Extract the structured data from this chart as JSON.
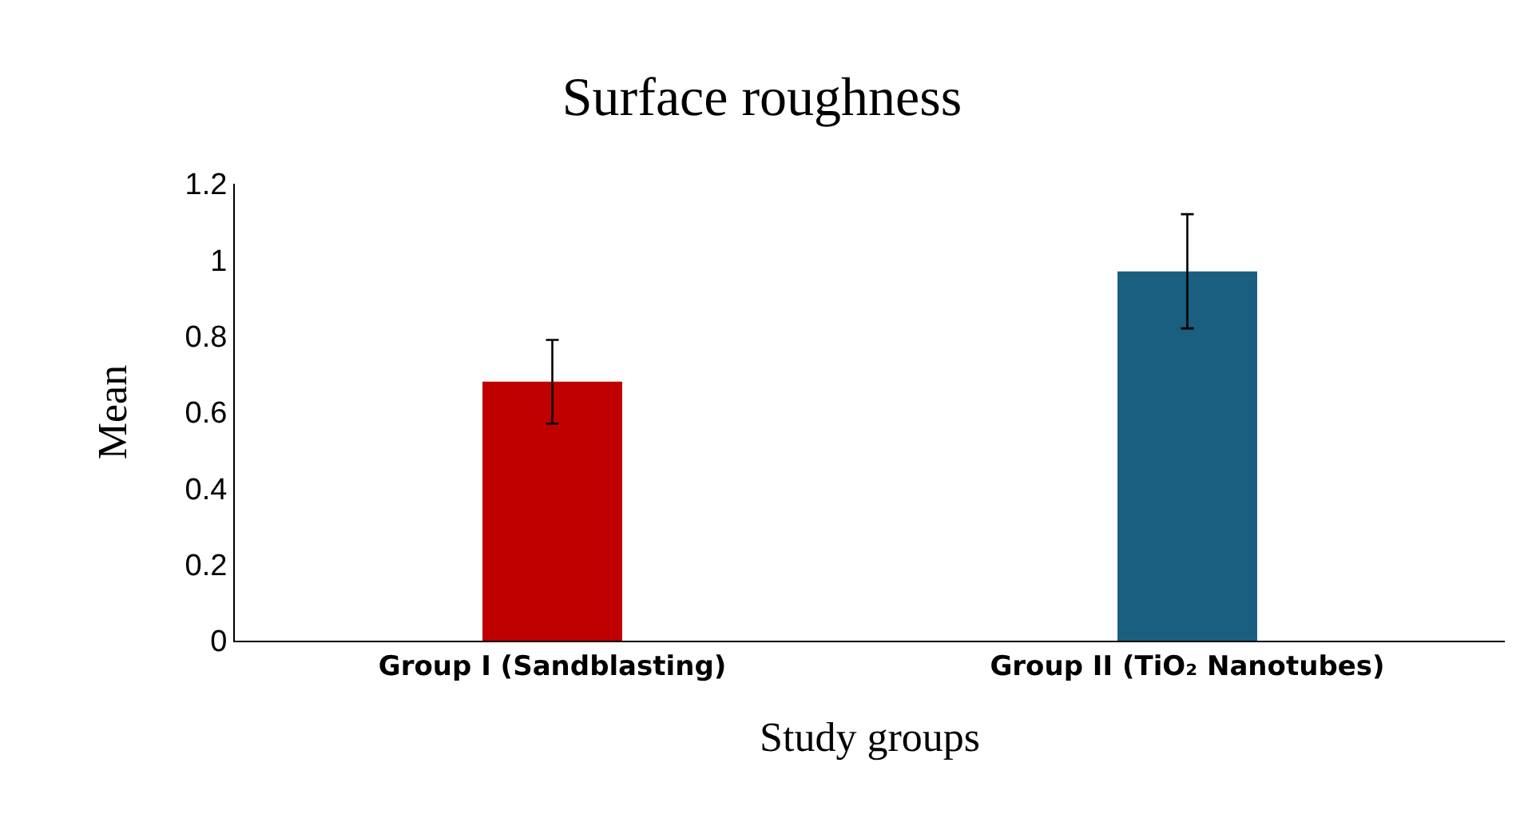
{
  "chart_data": {
    "type": "bar",
    "title": "Surface roughness",
    "xlabel": "Study groups",
    "ylabel": "Mean",
    "categories": [
      "Group I (Sandblasting)",
      "Group II (TiO₂ Nanotubes)"
    ],
    "values": [
      0.68,
      0.97
    ],
    "colors": [
      "#c00000",
      "#1a5e80"
    ],
    "errors": [
      0.11,
      0.15
    ],
    "ylim": [
      0,
      1.2
    ],
    "yticks": [
      0,
      0.2,
      0.4,
      0.6,
      0.8,
      1,
      1.2
    ],
    "grid": false
  }
}
